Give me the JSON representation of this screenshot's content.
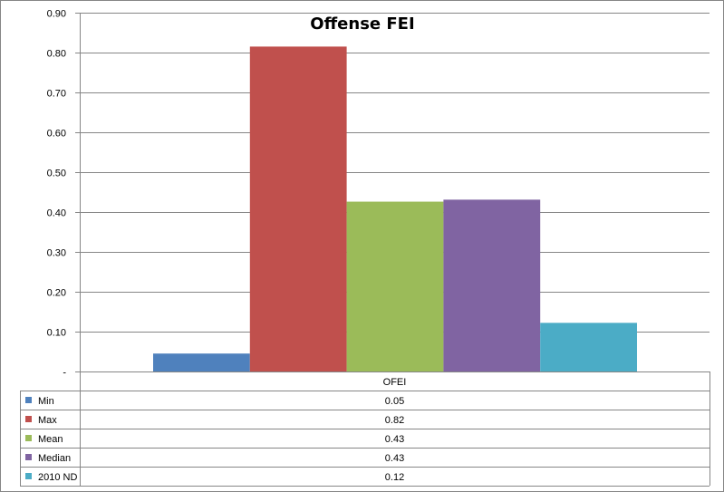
{
  "chart_data": {
    "type": "bar",
    "title": "Offense FEI",
    "categories": [
      "OFEI"
    ],
    "ylim": [
      0,
      0.9
    ],
    "yticks": [
      "-",
      "0.10",
      "0.20",
      "0.30",
      "0.40",
      "0.50",
      "0.60",
      "0.70",
      "0.80",
      "0.90"
    ],
    "grid": true,
    "legend": "data-table",
    "series": [
      {
        "name": "Min",
        "values": [
          0.045
        ],
        "display": "0.05",
        "color": "#4F81BD"
      },
      {
        "name": "Max",
        "values": [
          0.815
        ],
        "display": "0.82",
        "color": "#C0504D"
      },
      {
        "name": "Mean",
        "values": [
          0.426
        ],
        "display": "0.43",
        "color": "#9BBB59"
      },
      {
        "name": "Median",
        "values": [
          0.431
        ],
        "display": "0.43",
        "color": "#8064A2"
      },
      {
        "name": "2010 ND",
        "values": [
          0.122
        ],
        "display": "0.12",
        "color": "#4BACC6"
      }
    ]
  }
}
